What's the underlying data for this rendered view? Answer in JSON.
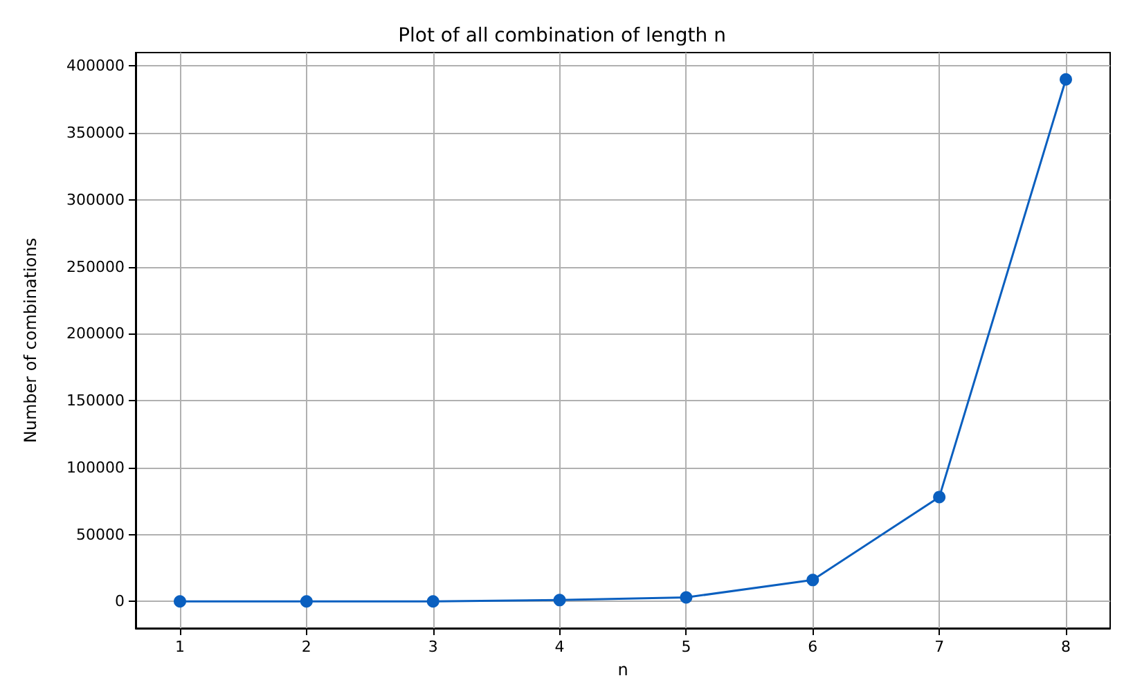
{
  "chart_data": {
    "type": "line",
    "title": "Plot of all combination of length n",
    "xlabel": "n",
    "ylabel": "Number of combinations",
    "x": [
      1,
      2,
      3,
      4,
      5,
      6,
      7,
      8
    ],
    "series": [
      {
        "color": "#0a5fbf",
        "values": [
          0,
          0,
          0,
          1000,
          3000,
          16000,
          78000,
          390000
        ]
      }
    ],
    "xlim": [
      0.65,
      8.35
    ],
    "xticks": [
      1,
      2,
      3,
      4,
      5,
      6,
      7,
      8
    ],
    "ylim": [
      -20000,
      410000
    ],
    "yticks": [
      0,
      50000,
      100000,
      150000,
      200000,
      250000,
      300000,
      350000,
      400000
    ],
    "grid": true,
    "marker": "circle",
    "line_style": "solid"
  }
}
